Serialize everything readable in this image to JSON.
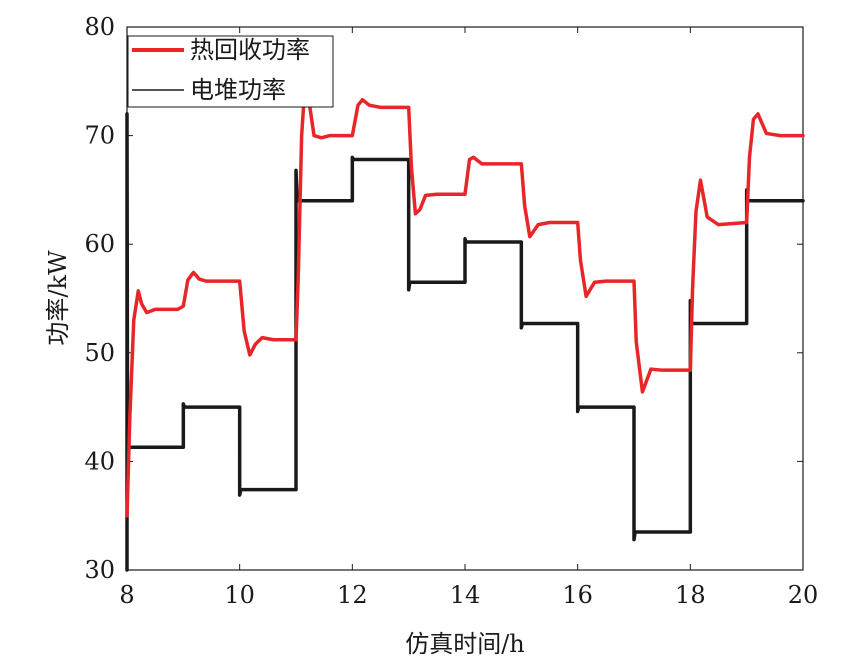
{
  "chart_data": {
    "type": "line",
    "xlabel": "仿真时间/h",
    "ylabel": "功率/kW",
    "xlim": [
      8,
      20
    ],
    "ylim": [
      30,
      80
    ],
    "xticks": [
      8,
      10,
      12,
      14,
      16,
      18,
      20
    ],
    "yticks": [
      30,
      40,
      50,
      60,
      70,
      80
    ],
    "grid": false,
    "legend_position": "top-left",
    "series": [
      {
        "name": "热回收功率",
        "color": "#e8262a",
        "x": [
          8,
          8.05,
          8.12,
          8.2,
          8.26,
          8.35,
          8.5,
          8.7,
          8.9,
          9.0,
          9.08,
          9.18,
          9.28,
          9.4,
          9.6,
          10.0,
          10.08,
          10.18,
          10.28,
          10.4,
          10.6,
          11.0,
          11.04,
          11.1,
          11.17,
          11.25,
          11.32,
          11.45,
          11.6,
          12.0,
          12.1,
          12.18,
          12.3,
          12.5,
          13.0,
          13.05,
          13.12,
          13.2,
          13.3,
          13.5,
          14.0,
          14.08,
          14.15,
          14.3,
          14.5,
          15.0,
          15.06,
          15.15,
          15.3,
          15.5,
          16.0,
          16.05,
          16.15,
          16.3,
          16.5,
          17.0,
          17.04,
          17.15,
          17.3,
          17.5,
          18.0,
          18.04,
          18.1,
          18.18,
          18.3,
          18.5,
          19.0,
          19.05,
          19.12,
          19.2,
          19.35,
          19.6,
          20.0
        ],
        "y": [
          35,
          44,
          53,
          55.7,
          54.5,
          53.7,
          54.0,
          54.0,
          54.0,
          54.3,
          56.7,
          57.4,
          56.8,
          56.6,
          56.6,
          56.6,
          52,
          49.8,
          50.8,
          51.4,
          51.2,
          51.2,
          57,
          70,
          75.5,
          72.5,
          70.0,
          69.8,
          70.0,
          70.0,
          72.8,
          73.3,
          72.8,
          72.6,
          72.6,
          67,
          62.8,
          63.2,
          64.5,
          64.6,
          64.6,
          67.8,
          68.0,
          67.4,
          67.4,
          67.4,
          63.5,
          60.7,
          61.8,
          62.0,
          62.0,
          58.5,
          55.2,
          56.5,
          56.6,
          56.6,
          51,
          46.4,
          48.5,
          48.4,
          48.4,
          56,
          63,
          65.9,
          62.5,
          61.8,
          62.0,
          68,
          71.5,
          72.0,
          70.2,
          70.0,
          70.0
        ]
      },
      {
        "name": "电堆功率",
        "color": "#1a1a1a",
        "x": [
          8,
          8,
          8.01,
          8.02,
          9.0,
          9.0,
          9.02,
          10.0,
          10.0,
          10.02,
          11.0,
          11.0,
          11.02,
          12.0,
          12.0,
          12.02,
          13.0,
          13.0,
          13.02,
          14.0,
          14.0,
          14.02,
          15.0,
          15.0,
          15.02,
          16.0,
          16.0,
          16.02,
          17.0,
          17.0,
          17.02,
          18.0,
          18.0,
          18.02,
          19.0,
          19.0,
          19.02,
          20.0
        ],
        "y": [
          30,
          72,
          41.3,
          41.3,
          41.3,
          45.3,
          45.0,
          45.0,
          36.9,
          37.4,
          37.4,
          66.8,
          64.0,
          64.0,
          68.0,
          67.8,
          67.8,
          55.8,
          56.5,
          56.5,
          60.5,
          60.2,
          60.2,
          52.3,
          52.7,
          52.7,
          44.6,
          45.0,
          45.0,
          32.8,
          33.5,
          33.5,
          54.8,
          52.7,
          52.7,
          65.0,
          64.0,
          64.0
        ]
      }
    ]
  }
}
